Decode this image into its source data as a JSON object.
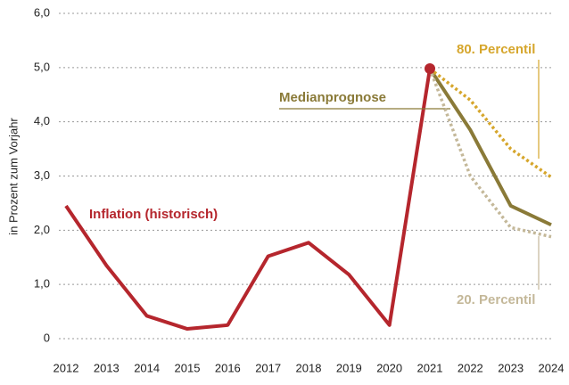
{
  "chart_data": {
    "type": "line",
    "y_label": "in Prozent zum Vorjahr",
    "x": [
      2012,
      2013,
      2014,
      2015,
      2016,
      2017,
      2018,
      2019,
      2020,
      2021,
      2022,
      2023,
      2024
    ],
    "xlim": [
      2012,
      2024
    ],
    "xticks": [
      2012,
      2013,
      2014,
      2015,
      2016,
      2017,
      2018,
      2019,
      2020,
      2021,
      2022,
      2023,
      2024
    ],
    "ylim": [
      0,
      6
    ],
    "yticks": [
      0,
      {
        "value": 1,
        "label": "1,0"
      },
      {
        "value": 2,
        "label": "2,0"
      },
      {
        "value": 3,
        "label": "3,0"
      },
      {
        "value": 4,
        "label": "4,0"
      },
      {
        "value": 5,
        "label": "5,0"
      },
      {
        "value": 6,
        "label": "6,0"
      }
    ],
    "grid": true,
    "series": [
      {
        "name": "Inflation (historisch)",
        "color": "#b5262d",
        "line_style": "solid",
        "values": [
          2.45,
          1.35,
          0.42,
          0.18,
          0.25,
          1.52,
          1.77,
          1.18,
          0.25,
          4.98,
          null,
          null,
          null
        ]
      },
      {
        "name": "Medianprognose",
        "color": "#8a7a38",
        "line_style": "solid",
        "values": [
          null,
          null,
          null,
          null,
          null,
          null,
          null,
          null,
          null,
          4.98,
          3.85,
          2.45,
          2.1
        ]
      },
      {
        "name": "80. Percentil",
        "color": "#d6a62c",
        "line_style": "dotted",
        "values": [
          null,
          null,
          null,
          null,
          null,
          null,
          null,
          null,
          null,
          4.98,
          4.4,
          3.5,
          2.98
        ]
      },
      {
        "name": "20. Percentil",
        "color": "#c4b899",
        "line_style": "dotted",
        "values": [
          null,
          null,
          null,
          null,
          null,
          null,
          null,
          null,
          null,
          4.98,
          3.0,
          2.05,
          1.88
        ]
      }
    ]
  }
}
